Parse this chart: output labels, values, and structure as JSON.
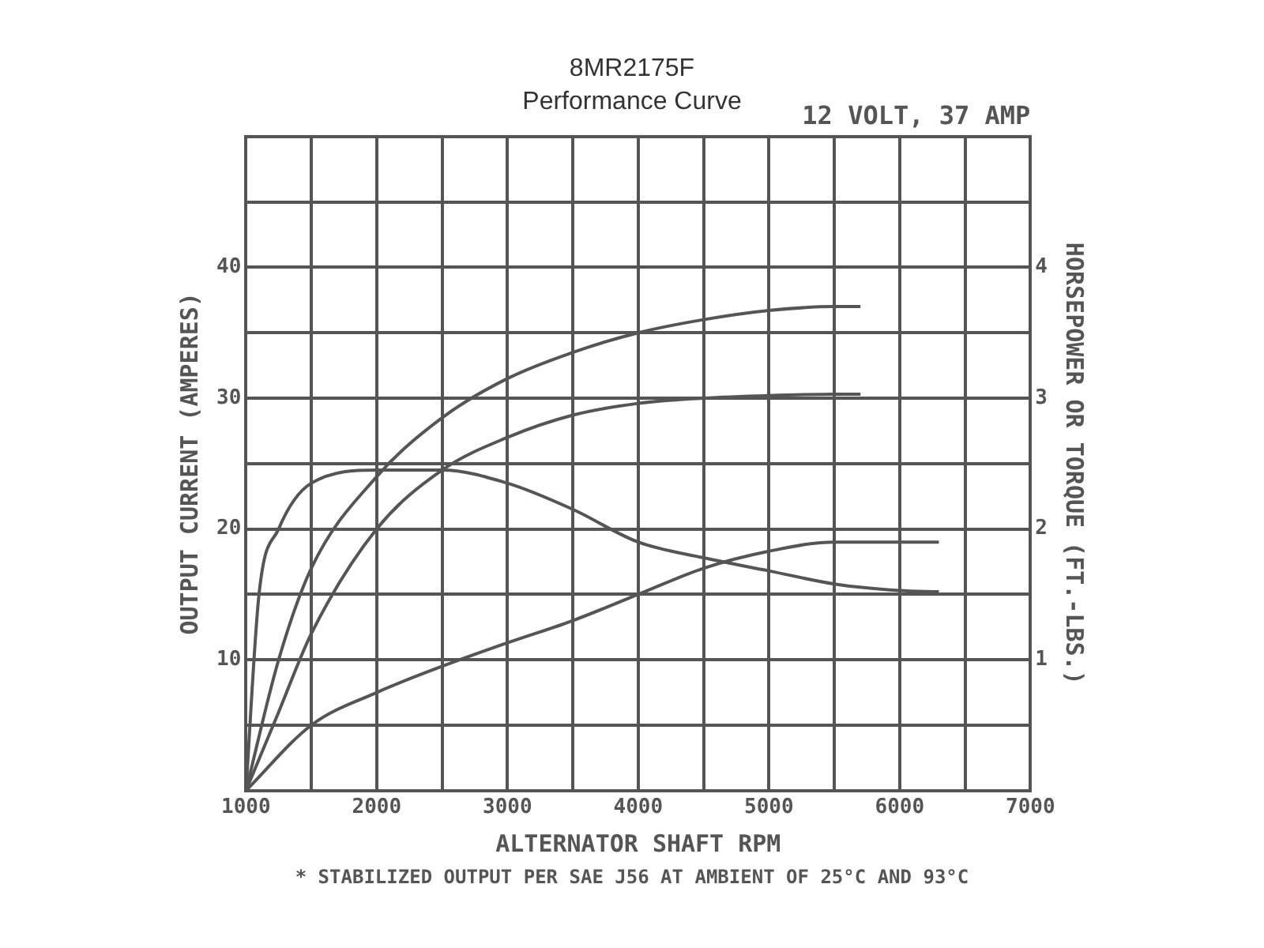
{
  "chart_data": {
    "type": "line",
    "title": "8MR2175F",
    "subtitle": "Performance Curve",
    "xlabel": "ALTERNATOR SHAFT RPM",
    "ylabel": "OUTPUT CURRENT (AMPERES)",
    "y2label": "HORSEPOWER OR TORQUE (FT.-LBS.)",
    "annotations": [
      "12 VOLT, 37 AMP",
      "* STABILIZED OUTPUT PER SAE J56 AT AMBIENT OF 25°C AND 93°C"
    ],
    "series": [
      {
        "color": "#555555",
        "x": [
          1000,
          1250,
          1500,
          2000,
          2500,
          3000,
          3500,
          4000,
          4500,
          5000,
          5500,
          5700
        ],
        "values": [
          0,
          10,
          17,
          24,
          28.5,
          31.5,
          33.5,
          35,
          36,
          36.7,
          37,
          37
        ]
      },
      {
        "color": "#555555",
        "x": [
          1000,
          1250,
          1500,
          2000,
          2500,
          3000,
          3500,
          4000,
          4500,
          5000,
          5500,
          5700
        ],
        "values": [
          0,
          6,
          12,
          20,
          24.5,
          27,
          28.7,
          29.6,
          30,
          30.2,
          30.3,
          30.3
        ]
      },
      {
        "color": "#555555",
        "axis": "y2",
        "x": [
          1000,
          1100,
          1250,
          1500,
          2000,
          2500,
          3000,
          3500,
          4000,
          4500,
          5000,
          5500,
          6000,
          6300
        ],
        "values": [
          0,
          1.5,
          2.0,
          2.35,
          2.45,
          2.45,
          2.35,
          2.15,
          1.9,
          1.78,
          1.68,
          1.58,
          1.53,
          1.52
        ]
      },
      {
        "color": "#555555",
        "axis": "y2",
        "x": [
          1000,
          1500,
          2000,
          2500,
          3000,
          3500,
          4000,
          4500,
          5000,
          5500,
          6000,
          6300
        ],
        "values": [
          0,
          0.5,
          0.75,
          0.95,
          1.13,
          1.3,
          1.5,
          1.7,
          1.83,
          1.9,
          1.9,
          1.9
        ]
      }
    ],
    "xlim": [
      1000,
      7000
    ],
    "xticks": [
      1000,
      {
        "value": 1500,
        "label": null
      },
      2000,
      {
        "value": 2500,
        "label": null
      },
      3000,
      {
        "value": 3500,
        "label": null
      },
      4000,
      {
        "value": 4500,
        "label": null
      },
      5000,
      {
        "value": 5500,
        "label": null
      },
      6000,
      {
        "value": 6500,
        "label": null
      },
      7000
    ],
    "ylim": [
      0,
      50
    ],
    "yticks": [
      {
        "value": 5,
        "label": null
      },
      10,
      {
        "value": 15,
        "label": null
      },
      20,
      {
        "value": 25,
        "label": null
      },
      30,
      {
        "value": 35,
        "label": null
      },
      40,
      {
        "value": 45,
        "label": null
      },
      {
        "value": 50,
        "label": null
      }
    ],
    "y2lim": [
      0,
      5
    ],
    "y2ticks": [
      1,
      2,
      3,
      4
    ],
    "grid": true,
    "legend": false,
    "marker": "none",
    "line_style": "solid"
  }
}
